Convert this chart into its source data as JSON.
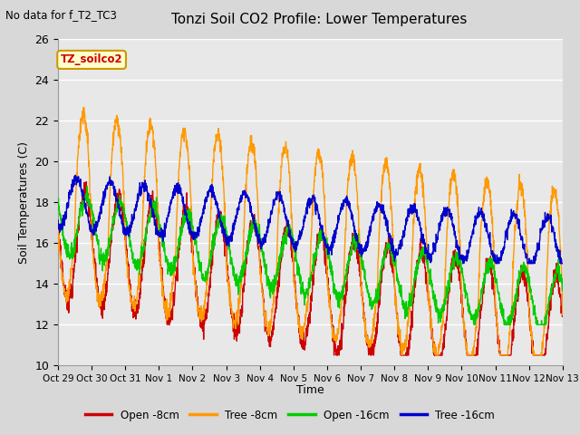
{
  "title": "Tonzi Soil CO2 Profile: Lower Temperatures",
  "subtitle": "No data for f_T2_TC3",
  "ylabel": "Soil Temperatures (C)",
  "xlabel": "Time",
  "ylim": [
    10,
    26
  ],
  "fig_facecolor": "#d8d8d8",
  "ax_facecolor": "#e8e8e8",
  "legend_label": "TZ_soilco2",
  "legend_box_facecolor": "#ffffcc",
  "legend_box_edgecolor": "#cc9900",
  "series_colors": [
    "#cc0000",
    "#ff9900",
    "#00cc00",
    "#0000cc"
  ],
  "series_labels": [
    "Open -8cm",
    "Tree -8cm",
    "Open -16cm",
    "Tree -16cm"
  ],
  "xtick_labels": [
    "Oct 29",
    "Oct 30",
    "Oct 31",
    "Nov 1",
    "Nov 2",
    "Nov 3",
    "Nov 4",
    "Nov 5",
    "Nov 6",
    "Nov 7",
    "Nov 8",
    "Nov 9",
    "Nov 10",
    "Nov 11",
    "Nov 12",
    "Nov 13"
  ],
  "ytick_values": [
    10,
    12,
    14,
    16,
    18,
    20,
    22,
    24,
    26
  ],
  "grid_color": "#ffffff",
  "linewidth": 1.0
}
